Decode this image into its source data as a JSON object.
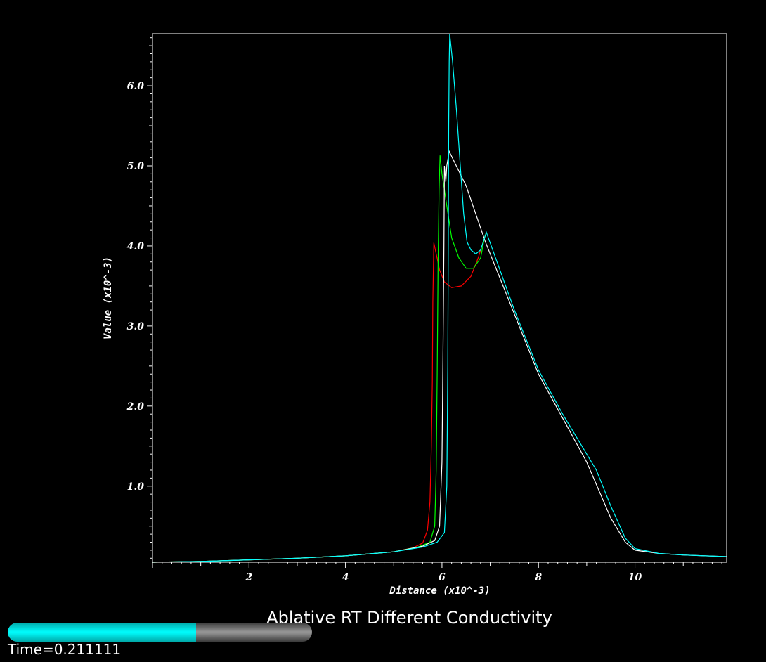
{
  "chart_data": {
    "type": "line",
    "title": "Ablative RT Different Conductivity",
    "xlabel": "Distance (x10^-3)",
    "ylabel": "Value (x10^-3)",
    "xlim": [
      0,
      11.9
    ],
    "ylim": [
      0.05,
      6.65
    ],
    "xticks": [
      2,
      4,
      6,
      8,
      10
    ],
    "xtick_labels": [
      "2",
      "4",
      "6",
      "8",
      "10"
    ],
    "yticks": [
      1,
      2,
      3,
      4,
      5,
      6
    ],
    "ytick_labels": [
      "1.0",
      "2.0",
      "3.0",
      "4.0",
      "5.0",
      "6.0"
    ],
    "grid": false,
    "series": [
      {
        "color": "#ff0000",
        "points": [
          [
            0,
            0.05
          ],
          [
            1,
            0.06
          ],
          [
            2,
            0.08
          ],
          [
            3,
            0.1
          ],
          [
            4,
            0.13
          ],
          [
            5,
            0.18
          ],
          [
            5.4,
            0.23
          ],
          [
            5.6,
            0.29
          ],
          [
            5.7,
            0.45
          ],
          [
            5.75,
            0.8
          ],
          [
            5.78,
            1.5
          ],
          [
            5.8,
            2.3
          ],
          [
            5.81,
            3.3
          ],
          [
            5.83,
            4.04
          ],
          [
            5.88,
            3.9
          ],
          [
            5.95,
            3.7
          ],
          [
            6.05,
            3.55
          ],
          [
            6.2,
            3.48
          ],
          [
            6.4,
            3.5
          ],
          [
            6.6,
            3.62
          ],
          [
            6.75,
            3.85
          ],
          [
            6.88,
            4.1
          ],
          [
            6.92,
            4.17
          ]
        ]
      },
      {
        "color": "#00ff00",
        "points": [
          [
            0,
            0.05
          ],
          [
            1,
            0.06
          ],
          [
            2,
            0.08
          ],
          [
            3,
            0.1
          ],
          [
            4,
            0.13
          ],
          [
            5,
            0.18
          ],
          [
            5.5,
            0.24
          ],
          [
            5.75,
            0.3
          ],
          [
            5.85,
            0.5
          ],
          [
            5.88,
            1.2
          ],
          [
            5.9,
            2.4
          ],
          [
            5.92,
            3.8
          ],
          [
            5.94,
            4.7
          ],
          [
            5.96,
            5.13
          ],
          [
            6,
            4.9
          ],
          [
            6.05,
            4.7
          ],
          [
            6.1,
            4.5
          ],
          [
            6.2,
            4.1
          ],
          [
            6.35,
            3.85
          ],
          [
            6.5,
            3.72
          ],
          [
            6.65,
            3.72
          ],
          [
            6.8,
            3.85
          ],
          [
            6.88,
            4.1
          ],
          [
            6.92,
            4.17
          ]
        ]
      },
      {
        "color": "#ffffff",
        "points": [
          [
            0,
            0.05
          ],
          [
            1,
            0.06
          ],
          [
            2,
            0.08
          ],
          [
            3,
            0.1
          ],
          [
            4,
            0.13
          ],
          [
            5,
            0.18
          ],
          [
            5.6,
            0.25
          ],
          [
            5.85,
            0.32
          ],
          [
            5.95,
            0.5
          ],
          [
            6,
            1.3
          ],
          [
            6.02,
            2.6
          ],
          [
            6.04,
            4.0
          ],
          [
            6.05,
            5.0
          ],
          [
            6.08,
            4.8
          ],
          [
            6.1,
            5.0
          ],
          [
            6.15,
            5.18
          ],
          [
            6.5,
            4.75
          ],
          [
            6.9,
            4.05
          ],
          [
            7.5,
            3.15
          ],
          [
            8,
            2.4
          ],
          [
            8.5,
            1.85
          ],
          [
            9,
            1.3
          ],
          [
            9.5,
            0.6
          ],
          [
            9.8,
            0.3
          ],
          [
            10,
            0.2
          ],
          [
            10.5,
            0.16
          ],
          [
            11,
            0.14
          ],
          [
            11.9,
            0.12
          ]
        ]
      },
      {
        "color": "#00ffff",
        "points": [
          [
            0,
            0.05
          ],
          [
            1,
            0.06
          ],
          [
            2,
            0.08
          ],
          [
            3,
            0.1
          ],
          [
            4,
            0.13
          ],
          [
            5,
            0.18
          ],
          [
            5.6,
            0.24
          ],
          [
            5.9,
            0.3
          ],
          [
            6.05,
            0.42
          ],
          [
            6.1,
            1.0
          ],
          [
            6.12,
            2.5
          ],
          [
            6.13,
            4.0
          ],
          [
            6.14,
            5.5
          ],
          [
            6.15,
            6.3
          ],
          [
            6.16,
            6.65
          ],
          [
            6.22,
            6.3
          ],
          [
            6.3,
            5.7
          ],
          [
            6.38,
            5.0
          ],
          [
            6.45,
            4.4
          ],
          [
            6.52,
            4.05
          ],
          [
            6.6,
            3.95
          ],
          [
            6.7,
            3.9
          ],
          [
            6.8,
            3.95
          ],
          [
            6.92,
            4.17
          ],
          [
            7.5,
            3.2
          ],
          [
            8,
            2.45
          ],
          [
            8.5,
            1.9
          ],
          [
            9,
            1.4
          ],
          [
            9.2,
            1.2
          ],
          [
            9.5,
            0.75
          ],
          [
            9.8,
            0.35
          ],
          [
            10,
            0.22
          ],
          [
            10.5,
            0.16
          ],
          [
            11,
            0.14
          ],
          [
            11.9,
            0.12
          ]
        ]
      }
    ]
  },
  "time_text": "Time=0.211111",
  "progress": 0.62
}
